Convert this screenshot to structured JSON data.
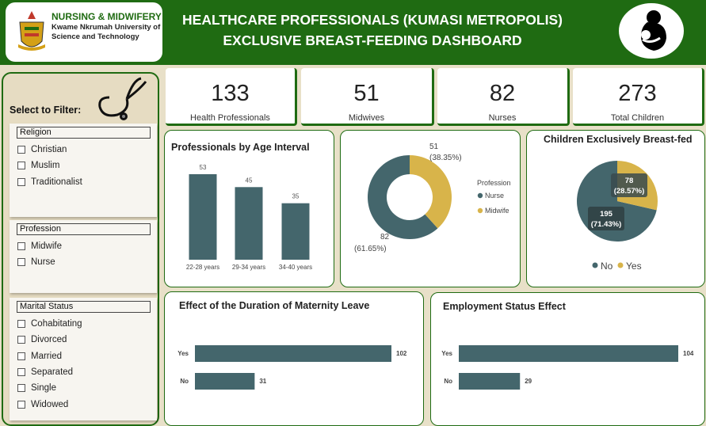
{
  "header": {
    "logo_line1": "NURSING & MIDWIFERY",
    "logo_line2": "Kwame Nkrumah University of Science and Technology",
    "title_line1": "HEALTHCARE PROFESSIONALS (KUMASI METROPOLIS)",
    "title_line2": "EXCLUSIVE BREAST-FEEDING DASHBOARD",
    "brand_color": "#1f6b12"
  },
  "sidebar": {
    "select_label": "Select to Filter:",
    "religion": {
      "header": "Religion",
      "options": [
        "Christian",
        "Muslim",
        "Traditionalist"
      ]
    },
    "profession": {
      "header": "Profession",
      "options": [
        "Midwife",
        "Nurse"
      ]
    },
    "marital": {
      "header": "Marital Status",
      "options": [
        "Cohabitating",
        "Divorced",
        "Married",
        "Separated",
        "Single",
        "Widowed"
      ]
    }
  },
  "kpis": [
    {
      "value": "133",
      "label": "Health Professionals"
    },
    {
      "value": "51",
      "label": "Midwives"
    },
    {
      "value": "82",
      "label": "Nurses"
    },
    {
      "value": "273",
      "label": "Total Children"
    }
  ],
  "chart_data": [
    {
      "type": "bar",
      "title": "Professionals by Age Interval",
      "categories": [
        "22-28 years",
        "29-34 years",
        "34-40 years"
      ],
      "values": [
        53,
        45,
        35
      ],
      "color": "#44666c"
    },
    {
      "type": "pie",
      "variant": "donut",
      "legend_title": "Profession",
      "categories": [
        "Nurse",
        "Midwife"
      ],
      "values": [
        82,
        51
      ],
      "labels": [
        "82",
        "51"
      ],
      "percent_labels": [
        "(61.65%)",
        "(38.35%)"
      ],
      "colors": [
        "#44666c",
        "#d8b44a"
      ]
    },
    {
      "type": "pie",
      "title": "Children Exclusively Breast-fed",
      "categories": [
        "No",
        "Yes"
      ],
      "values": [
        195,
        78
      ],
      "labels": [
        "195",
        "78"
      ],
      "percent_labels": [
        "(71.43%)",
        "(28.57%)"
      ],
      "colors": [
        "#44666c",
        "#d8b44a"
      ]
    },
    {
      "type": "bar",
      "orientation": "horizontal",
      "title": "Effect of the Duration of Maternity Leave",
      "categories": [
        "Yes",
        "No"
      ],
      "values": [
        102,
        31
      ],
      "color": "#44666c"
    },
    {
      "type": "bar",
      "orientation": "horizontal",
      "title": "Employment Status Effect",
      "categories": [
        "Yes",
        "No"
      ],
      "values": [
        104,
        29
      ],
      "color": "#44666c"
    }
  ]
}
